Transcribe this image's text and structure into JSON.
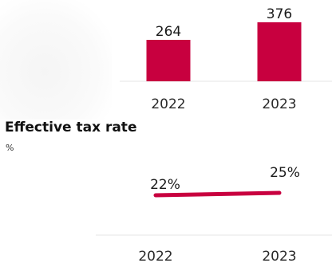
{
  "colors": {
    "accent": "#c8003f",
    "axis": "#e4e4e4"
  },
  "chart_data": [
    {
      "type": "bar",
      "categories": [
        "2022",
        "2023"
      ],
      "values": [
        264,
        376
      ],
      "data_labels": [
        "264",
        "376"
      ],
      "title": "",
      "ylabel": "",
      "ylim": [
        0,
        400
      ]
    },
    {
      "type": "line",
      "title": "Effective tax rate",
      "unit": "%",
      "categories": [
        "2022",
        "2023"
      ],
      "values": [
        22,
        25
      ],
      "data_labels": [
        "22%",
        "25%"
      ]
    }
  ]
}
